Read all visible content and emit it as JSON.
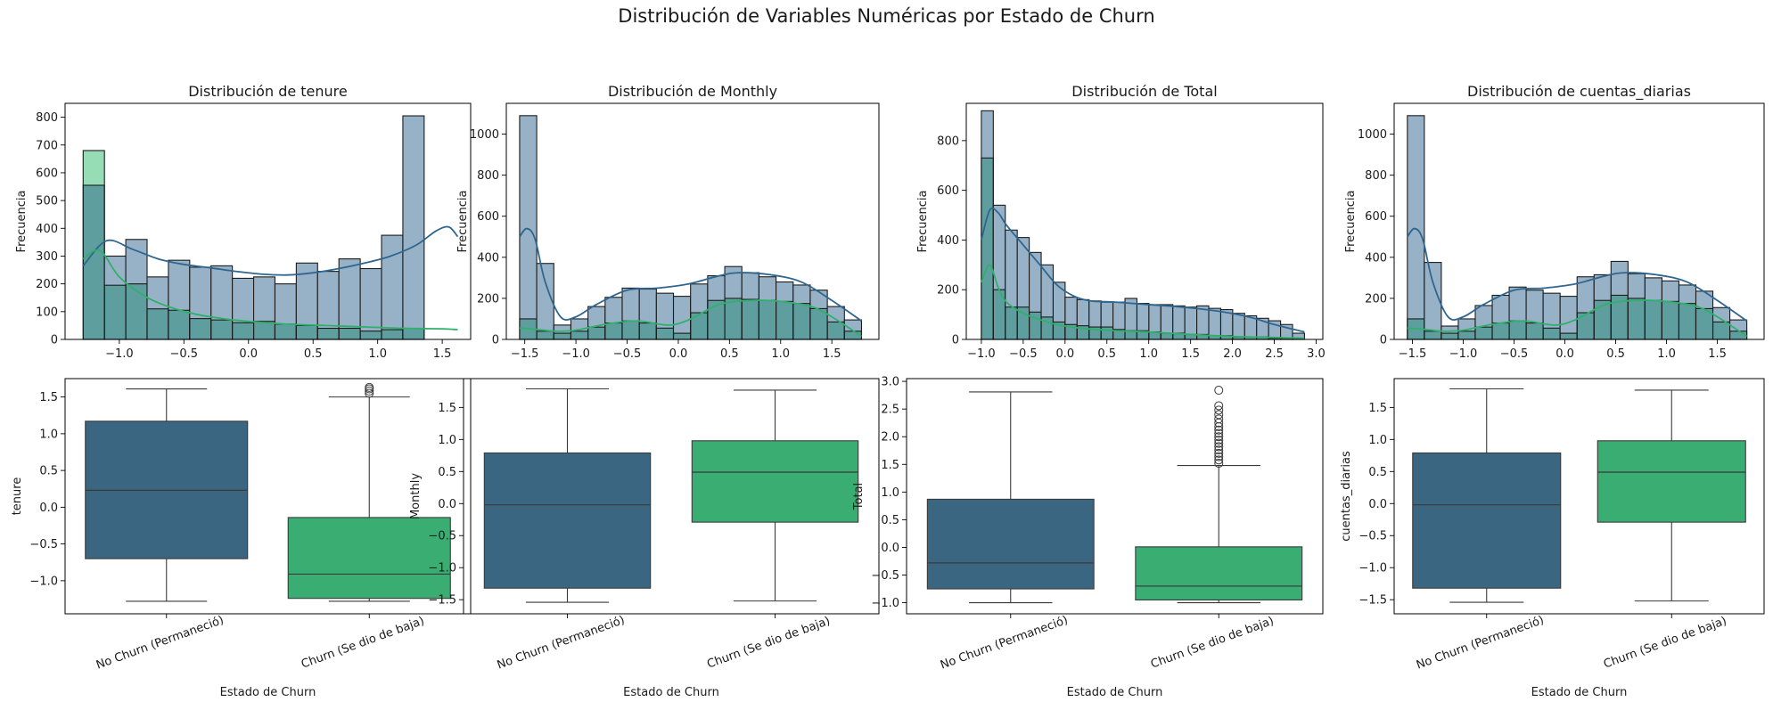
{
  "suptitle": "Distribución de Variables Numéricas por Estado de Churn",
  "colors": {
    "no_churn": "#3b6682",
    "churn": "#3aad72",
    "hist_no_churn_fill": "#97b2c7",
    "hist_churn_fill": "#96ddb6",
    "hist_overlap_fill": "#5f9e9e",
    "kde_no_churn": "#2f6690",
    "kde_churn": "#2fb06b"
  },
  "chart_data": [
    {
      "type": "histogram",
      "title": "Distribución de tenure",
      "xlabel": "",
      "ylabel": "Frecuencia",
      "xlim": [
        -1.42,
        1.72
      ],
      "ylim": [
        0,
        850
      ],
      "xticks": [
        -1.0,
        -0.5,
        0.0,
        0.5,
        1.0,
        1.5
      ],
      "yticks": [
        0,
        100,
        200,
        300,
        400,
        500,
        600,
        700,
        800
      ],
      "bin_edges": [
        -1.28,
        -1.115,
        -0.95,
        -0.785,
        -0.62,
        -0.455,
        -0.29,
        -0.125,
        0.04,
        0.205,
        0.37,
        0.535,
        0.7,
        0.865,
        1.03,
        1.195,
        1.36,
        1.525
      ],
      "series": [
        {
          "name": "No Churn (Permaneció)",
          "values": [
            555,
            300,
            360,
            225,
            285,
            260,
            265,
            220,
            225,
            200,
            275,
            245,
            290,
            255,
            375,
            805,
            0
          ]
        },
        {
          "name": "Churn (Se dio de baja)",
          "values": [
            680,
            195,
            200,
            110,
            105,
            75,
            70,
            60,
            65,
            55,
            50,
            40,
            40,
            30,
            35,
            40,
            0
          ]
        }
      ],
      "kde": [
        {
          "name": "No Churn (Permaneció)",
          "x": [
            -1.28,
            -1.1,
            -0.9,
            -0.7,
            -0.5,
            -0.3,
            -0.1,
            0.1,
            0.3,
            0.5,
            0.7,
            0.9,
            1.1,
            1.3,
            1.45,
            1.55,
            1.62
          ],
          "y": [
            265,
            355,
            325,
            290,
            270,
            258,
            245,
            235,
            232,
            240,
            255,
            275,
            300,
            340,
            390,
            405,
            370
          ]
        },
        {
          "name": "Churn (Se dio de baja)",
          "x": [
            -1.28,
            -1.15,
            -1.0,
            -0.8,
            -0.6,
            -0.4,
            -0.2,
            0.0,
            0.3,
            0.6,
            0.9,
            1.2,
            1.5,
            1.62
          ],
          "y": [
            290,
            320,
            225,
            155,
            115,
            90,
            75,
            65,
            55,
            50,
            45,
            40,
            38,
            35
          ]
        }
      ]
    },
    {
      "type": "histogram",
      "title": "Distribución de Monthly",
      "xlabel": "",
      "ylabel": "Frecuencia",
      "xlim": [
        -1.68,
        1.96
      ],
      "ylim": [
        0,
        1150
      ],
      "xticks": [
        -1.5,
        -1.0,
        -0.5,
        0.0,
        0.5,
        1.0,
        1.5
      ],
      "yticks": [
        0,
        200,
        400,
        600,
        800,
        1000
      ],
      "bin_edges": [
        -1.55,
        -1.383,
        -1.216,
        -1.049,
        -0.882,
        -0.715,
        -0.548,
        -0.381,
        -0.214,
        -0.047,
        0.12,
        0.287,
        0.454,
        0.621,
        0.788,
        0.955,
        1.122,
        1.289,
        1.456,
        1.623,
        1.79
      ],
      "series": [
        {
          "name": "No Churn (Permaneció)",
          "values": [
            1090,
            370,
            70,
            100,
            160,
            205,
            250,
            245,
            225,
            210,
            270,
            310,
            355,
            325,
            305,
            280,
            265,
            240,
            160,
            95
          ]
        },
        {
          "name": "Churn (Se dio de baja)",
          "values": [
            100,
            40,
            30,
            40,
            60,
            80,
            90,
            80,
            55,
            30,
            130,
            190,
            200,
            195,
            190,
            185,
            175,
            150,
            85,
            40
          ]
        }
      ],
      "kde": [
        {
          "name": "No Churn (Permaneció)",
          "x": [
            -1.55,
            -1.48,
            -1.4,
            -1.3,
            -1.15,
            -1.0,
            -0.8,
            -0.5,
            -0.2,
            0.1,
            0.4,
            0.6,
            0.9,
            1.2,
            1.5,
            1.79
          ],
          "y": [
            500,
            540,
            490,
            280,
            110,
            110,
            170,
            240,
            250,
            270,
            310,
            325,
            315,
            280,
            190,
            90
          ]
        },
        {
          "name": "Churn (Se dio de baja)",
          "x": [
            -1.55,
            -1.4,
            -1.2,
            -1.0,
            -0.7,
            -0.4,
            -0.1,
            0.1,
            0.4,
            0.7,
            1.0,
            1.3,
            1.5,
            1.79
          ],
          "y": [
            55,
            50,
            40,
            45,
            75,
            90,
            70,
            95,
            170,
            190,
            185,
            160,
            110,
            15
          ]
        }
      ]
    },
    {
      "type": "histogram",
      "title": "Distribución de Total",
      "xlabel": "",
      "ylabel": "Frecuencia",
      "xlim": [
        -1.18,
        3.08
      ],
      "ylim": [
        0,
        950
      ],
      "xticks": [
        -1.0,
        -0.5,
        0.0,
        0.5,
        1.0,
        1.5,
        2.0,
        2.5,
        3.0
      ],
      "yticks": [
        0,
        200,
        400,
        600,
        800
      ],
      "bin_edges": [
        -1.0,
        -0.857,
        -0.714,
        -0.571,
        -0.428,
        -0.285,
        -0.142,
        0.001,
        0.144,
        0.287,
        0.43,
        0.573,
        0.716,
        0.859,
        1.002,
        1.145,
        1.288,
        1.431,
        1.574,
        1.717,
        1.86,
        2.003,
        2.146,
        2.289,
        2.432,
        2.575,
        2.718,
        2.861
      ],
      "series": [
        {
          "name": "No Churn (Permaneció)",
          "values": [
            920,
            540,
            440,
            410,
            350,
            300,
            230,
            170,
            160,
            155,
            150,
            150,
            165,
            145,
            140,
            140,
            135,
            130,
            135,
            125,
            120,
            105,
            95,
            85,
            75,
            60,
            25
          ]
        },
        {
          "name": "Churn (Se dio de baja)",
          "values": [
            730,
            200,
            130,
            130,
            110,
            90,
            70,
            60,
            55,
            50,
            50,
            40,
            35,
            35,
            30,
            25,
            25,
            20,
            20,
            15,
            15,
            10,
            10,
            10,
            5,
            5,
            5
          ]
        }
      ],
      "kde": [
        {
          "name": "No Churn (Permaneció)",
          "x": [
            -1.0,
            -0.9,
            -0.8,
            -0.7,
            -0.5,
            -0.3,
            -0.1,
            0.1,
            0.3,
            0.6,
            1.0,
            1.4,
            1.8,
            2.2,
            2.5,
            2.86
          ],
          "y": [
            400,
            520,
            510,
            460,
            380,
            300,
            220,
            175,
            155,
            150,
            140,
            130,
            115,
            90,
            60,
            30
          ]
        },
        {
          "name": "Churn (Se dio de baja)",
          "x": [
            -1.0,
            -0.9,
            -0.8,
            -0.7,
            -0.5,
            -0.3,
            -0.1,
            0.2,
            0.6,
            1.0,
            1.5,
            2.0,
            2.5,
            2.86
          ],
          "y": [
            230,
            300,
            210,
            150,
            105,
            80,
            60,
            45,
            35,
            30,
            20,
            12,
            8,
            5
          ]
        }
      ]
    },
    {
      "type": "histogram",
      "title": "Distribución de cuentas_diarias",
      "xlabel": "",
      "ylabel": "Frecuencia",
      "xlim": [
        -1.68,
        1.96
      ],
      "ylim": [
        0,
        1150
      ],
      "xticks": [
        -1.5,
        -1.0,
        -0.5,
        0.0,
        0.5,
        1.0,
        1.5
      ],
      "yticks": [
        0,
        200,
        400,
        600,
        800,
        1000
      ],
      "bin_edges": [
        -1.55,
        -1.383,
        -1.216,
        -1.049,
        -0.882,
        -0.715,
        -0.548,
        -0.381,
        -0.214,
        -0.047,
        0.12,
        0.287,
        0.454,
        0.621,
        0.788,
        0.955,
        1.122,
        1.289,
        1.456,
        1.623,
        1.79
      ],
      "series": [
        {
          "name": "No Churn (Permaneció)",
          "values": [
            1090,
            375,
            65,
            100,
            165,
            215,
            255,
            240,
            225,
            210,
            305,
            315,
            380,
            320,
            300,
            285,
            265,
            235,
            155,
            95
          ]
        },
        {
          "name": "Churn (Se dio de baja)",
          "values": [
            100,
            40,
            30,
            40,
            60,
            80,
            90,
            80,
            55,
            30,
            130,
            190,
            215,
            200,
            190,
            185,
            175,
            150,
            85,
            40
          ]
        }
      ],
      "kde": [
        {
          "name": "No Churn (Permaneció)",
          "x": [
            -1.55,
            -1.48,
            -1.4,
            -1.3,
            -1.15,
            -1.0,
            -0.8,
            -0.5,
            -0.2,
            0.1,
            0.4,
            0.6,
            0.9,
            1.2,
            1.5,
            1.79
          ],
          "y": [
            500,
            540,
            490,
            280,
            110,
            110,
            170,
            240,
            250,
            270,
            310,
            325,
            315,
            280,
            190,
            90
          ]
        },
        {
          "name": "Churn (Se dio de baja)",
          "x": [
            -1.55,
            -1.4,
            -1.2,
            -1.0,
            -0.7,
            -0.4,
            -0.1,
            0.1,
            0.4,
            0.7,
            1.0,
            1.3,
            1.5,
            1.79
          ],
          "y": [
            55,
            50,
            40,
            45,
            75,
            90,
            70,
            95,
            170,
            190,
            185,
            160,
            110,
            15
          ]
        }
      ]
    },
    {
      "type": "boxplot",
      "xlabel": "Estado de Churn",
      "ylabel": "tenure",
      "ylim": [
        -1.45,
        1.75
      ],
      "yticks": [
        -1.0,
        -0.5,
        0.0,
        0.5,
        1.0,
        1.5
      ],
      "categories": [
        "No Churn (Permaneció)",
        "Churn (Se dio de baja)"
      ],
      "boxes": [
        {
          "whisker_low": -1.28,
          "q1": -0.7,
          "median": 0.23,
          "q3": 1.17,
          "whisker_high": 1.61,
          "outliers": []
        },
        {
          "whisker_low": -1.28,
          "q1": -1.24,
          "median": -0.91,
          "q3": -0.14,
          "whisker_high": 1.5,
          "outliers": [
            1.55,
            1.58,
            1.61,
            1.63
          ]
        }
      ]
    },
    {
      "type": "boxplot",
      "xlabel": "Estado de Churn",
      "ylabel": "Monthly",
      "ylim": [
        -1.72,
        1.95
      ],
      "yticks": [
        -1.5,
        -1.0,
        -0.5,
        0.0,
        0.5,
        1.0,
        1.5
      ],
      "categories": [
        "No Churn (Permaneció)",
        "Churn (Se dio de baja)"
      ],
      "boxes": [
        {
          "whisker_low": -1.54,
          "q1": -1.32,
          "median": -0.02,
          "q3": 0.79,
          "whisker_high": 1.79,
          "outliers": []
        },
        {
          "whisker_low": -1.52,
          "q1": -0.29,
          "median": 0.49,
          "q3": 0.98,
          "whisker_high": 1.77,
          "outliers": []
        }
      ]
    },
    {
      "type": "boxplot",
      "xlabel": "Estado de Churn",
      "ylabel": "Total",
      "ylim": [
        -1.2,
        3.05
      ],
      "yticks": [
        -1.0,
        -0.5,
        0.0,
        0.5,
        1.0,
        1.5,
        2.0,
        2.5,
        3.0
      ],
      "categories": [
        "No Churn (Permaneció)",
        "Churn (Se dio de baja)"
      ],
      "boxes": [
        {
          "whisker_low": -1.0,
          "q1": -0.75,
          "median": -0.28,
          "q3": 0.87,
          "whisker_high": 2.81,
          "outliers": []
        },
        {
          "whisker_low": -1.0,
          "q1": -0.95,
          "median": -0.7,
          "q3": 0.01,
          "whisker_high": 1.48,
          "outliers": [
            1.52,
            1.58,
            1.64,
            1.7,
            1.76,
            1.82,
            1.88,
            1.94,
            2.0,
            2.06,
            2.12,
            2.18,
            2.25,
            2.32,
            2.4,
            2.48,
            2.56,
            2.84
          ]
        }
      ]
    },
    {
      "type": "boxplot",
      "xlabel": "Estado de Churn",
      "ylabel": "cuentas_diarias",
      "ylim": [
        -1.72,
        1.95
      ],
      "yticks": [
        -1.5,
        -1.0,
        -0.5,
        0.0,
        0.5,
        1.0,
        1.5
      ],
      "categories": [
        "No Churn (Permaneció)",
        "Churn (Se dio de baja)"
      ],
      "boxes": [
        {
          "whisker_low": -1.54,
          "q1": -1.32,
          "median": -0.02,
          "q3": 0.79,
          "whisker_high": 1.79,
          "outliers": []
        },
        {
          "whisker_low": -1.52,
          "q1": -0.29,
          "median": 0.49,
          "q3": 0.98,
          "whisker_high": 1.77,
          "outliers": []
        }
      ]
    }
  ]
}
